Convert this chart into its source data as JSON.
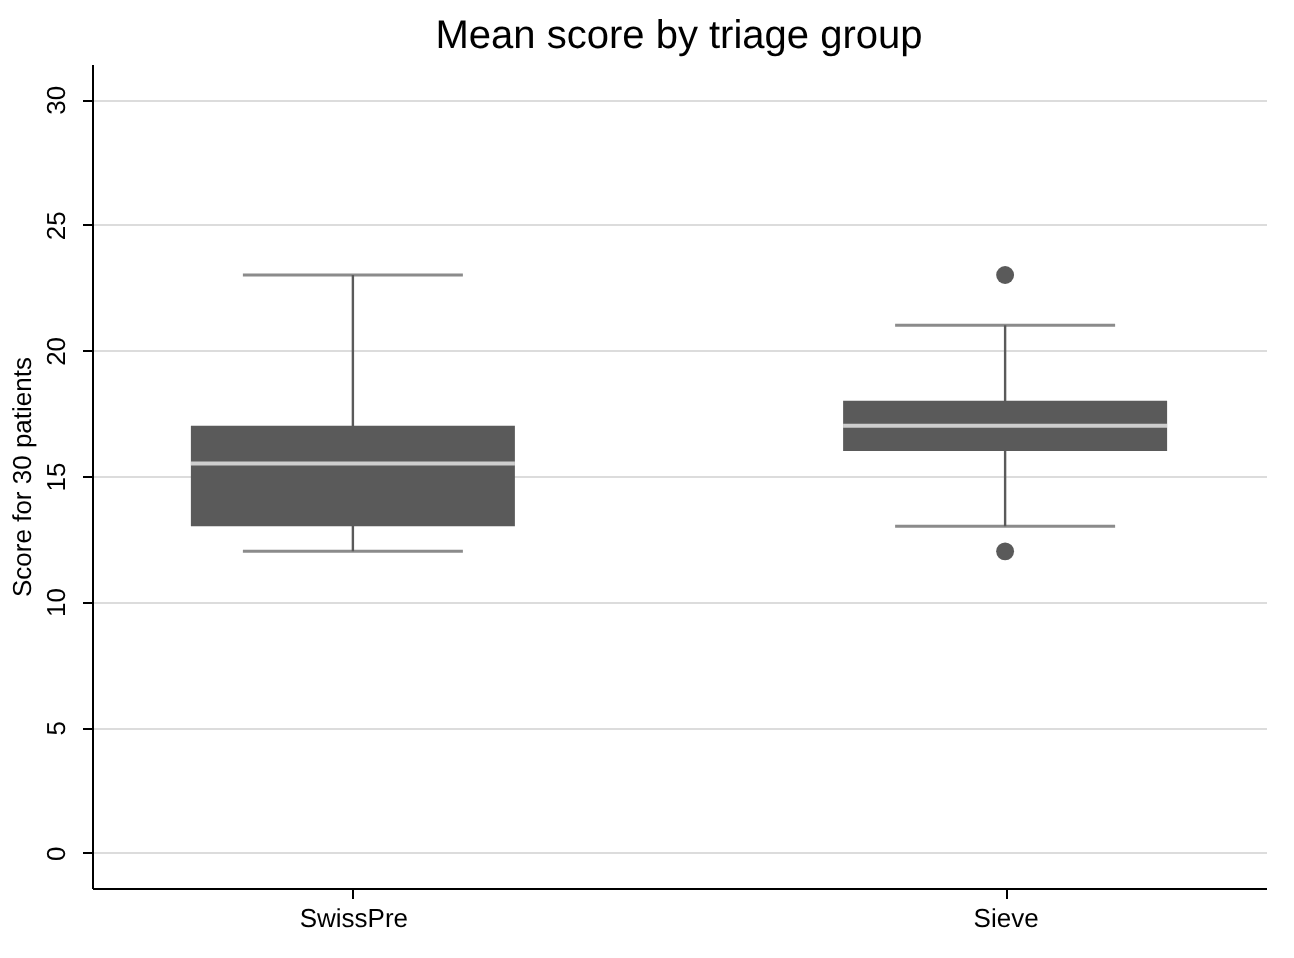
{
  "chart_data": {
    "type": "box",
    "title": "Mean score by triage group",
    "ylabel": "Score for 30 patients",
    "categories": [
      "SwissPre",
      "Sieve"
    ],
    "boxes": [
      {
        "low": 12,
        "q1": 13,
        "median": 15.5,
        "q3": 17,
        "high": 23
      },
      {
        "low": 13,
        "q1": 16,
        "median": 17,
        "q3": 18,
        "high": 21,
        "outliers": [
          23,
          12
        ]
      }
    ],
    "color": "#5a5a5a",
    "ylim": [
      -1.4,
      31.4
    ],
    "yticks": [
      0,
      5,
      10,
      15,
      20,
      25,
      30
    ],
    "grid": "y"
  }
}
